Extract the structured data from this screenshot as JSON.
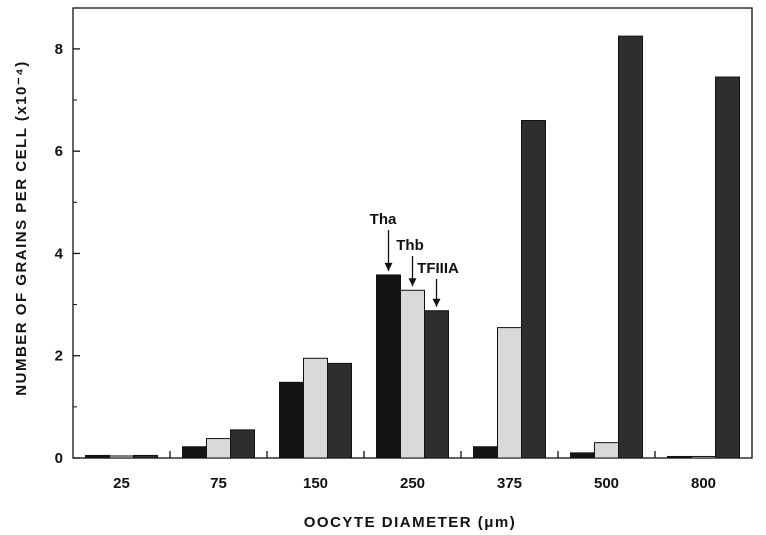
{
  "chart_data": {
    "type": "bar",
    "xlabel": "OOCYTE DIAMETER (μm)",
    "ylabel": "NUMBER OF GRAINS PER CELL (x10⁻⁴)",
    "categories": [
      "25",
      "75",
      "150",
      "250",
      "375",
      "500",
      "800"
    ],
    "ylim": [
      0,
      8.8
    ],
    "yticks": [
      "0",
      "2",
      "4",
      "6",
      "8"
    ],
    "grid": false,
    "series": [
      {
        "name": "Tha",
        "color": "#141414",
        "values": [
          0.05,
          0.22,
          1.48,
          3.58,
          0.22,
          0.1,
          0.03
        ]
      },
      {
        "name": "Thb",
        "color": "#d9d9d9",
        "values": [
          0.04,
          0.38,
          1.95,
          3.28,
          2.55,
          0.3,
          0.03
        ]
      },
      {
        "name": "TFIIIA",
        "color": "#2e2e2e",
        "values": [
          0.05,
          0.55,
          1.85,
          2.88,
          6.6,
          8.25,
          7.45
        ]
      }
    ],
    "annotations": [
      {
        "text": "Tha",
        "category": "250",
        "series": 0
      },
      {
        "text": "Thb",
        "category": "250",
        "series": 1
      },
      {
        "text": "TFIIIA",
        "category": "250",
        "series": 2
      }
    ]
  }
}
